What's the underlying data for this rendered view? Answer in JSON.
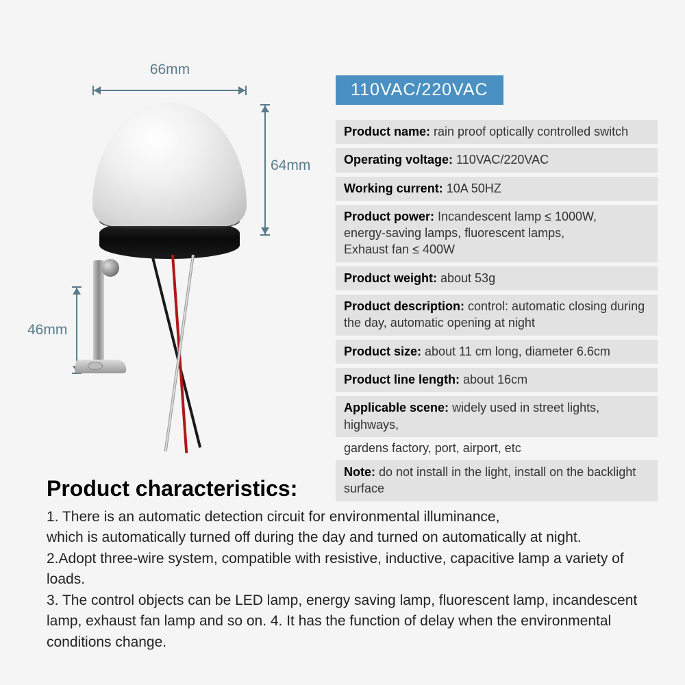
{
  "dimensions": {
    "width_label": "66mm",
    "height_label": "64mm",
    "bracket_label": "46mm"
  },
  "voltage_badge": "110VAC/220VAC",
  "specs": [
    {
      "label": "Product name:",
      "value": " rain proof optically controlled switch"
    },
    {
      "label": "Operating voltage:",
      "value": " 110VAC/220VAC"
    },
    {
      "label": "Working current:",
      "value": " 10A 50HZ"
    },
    {
      "label": "Product power:",
      "value": " Incandescent lamp ≤ 1000W,\nenergy-saving lamps, fluorescent lamps,\nExhaust fan ≤ 400W"
    },
    {
      "label": "Product weight:",
      "value": " about 53g"
    },
    {
      "label": "Product description:",
      "value": " control: automatic closing during the day, automatic opening at night"
    },
    {
      "label": "Product size:",
      "value": " about 11 cm long, diameter 6.6cm"
    },
    {
      "label": "Product line length:",
      "value": " about 16cm"
    },
    {
      "label": "Applicable scene:",
      "value": " widely used in street lights, highways,",
      "overflow": "gardens factory, port, airport, etc"
    },
    {
      "label": "Note:",
      "value": " do not install in the light, install on the backlight surface"
    }
  ],
  "characteristics": {
    "title": "Product characteristics:",
    "items": [
      "1. There is an automatic detection circuit for environmental illuminance,\nwhich is automatically turned off during the day and turned on automatically at night.",
      "2.Adopt three-wire system, compatible with resistive, inductive, capacitive lamp a variety of loads.",
      "3. The control objects can be LED lamp, energy saving lamp, fluorescent lamp, incandescent lamp, exhaust fan lamp and so on. 4. It has the function of delay when the environmental conditions change."
    ]
  },
  "colors": {
    "badge_bg": "#4a90c2",
    "row_bg": "#e2e2e2",
    "dim_line": "#5a7a8a",
    "page_bg": "#f5f5f5"
  }
}
